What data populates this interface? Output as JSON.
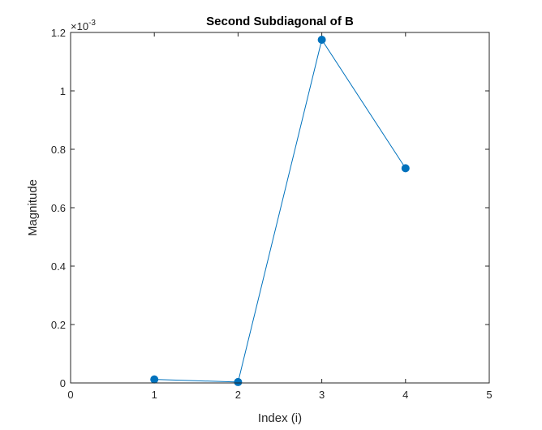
{
  "chart_data": {
    "type": "line",
    "title": "Second Subdiagonal of B",
    "xlabel": "Index (i)",
    "ylabel": "Magnitude",
    "y_multiplier": {
      "base": "×10",
      "exponent": "-3"
    },
    "xlim": [
      0,
      5
    ],
    "ylim": [
      0,
      0.0012
    ],
    "x_ticks": [
      0,
      1,
      2,
      3,
      4,
      5
    ],
    "x_tick_labels": [
      "0",
      "1",
      "2",
      "3",
      "4",
      "5"
    ],
    "y_ticks": [
      0,
      0.0002,
      0.0004,
      0.0006,
      0.0008,
      0.001,
      0.0012
    ],
    "y_tick_labels": [
      "0",
      "0.2",
      "0.4",
      "0.6",
      "0.8",
      "1",
      "1.2"
    ],
    "grid": false,
    "series": [
      {
        "x": [
          1,
          2,
          3,
          4
        ],
        "values": [
          1.2e-05,
          3e-06,
          0.001175,
          0.000735
        ],
        "color": "#0072BD",
        "marker": "filled-circle"
      }
    ]
  }
}
